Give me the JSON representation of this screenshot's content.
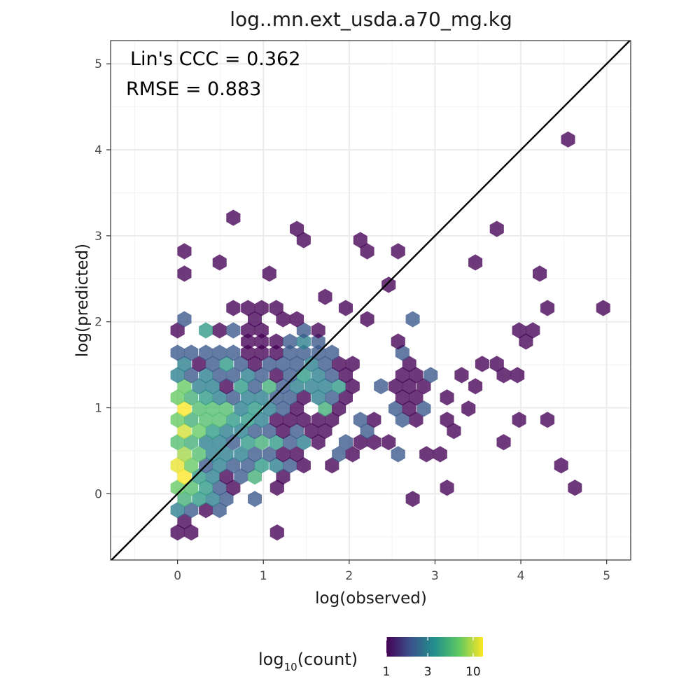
{
  "chart_data": {
    "type": "hexbin",
    "title": "log..mn.ext_usda.a70_mg.kg",
    "xlabel": "log(observed)",
    "ylabel": "log(predicted)",
    "xlim": [
      -0.78,
      5.28
    ],
    "ylim": [
      -0.77,
      5.27
    ],
    "x_ticks": [
      0,
      1,
      2,
      3,
      4,
      5
    ],
    "y_ticks": [
      0,
      1,
      2,
      3,
      4,
      5
    ],
    "x_tick_labels": [
      "0",
      "1",
      "2",
      "3",
      "4",
      "5"
    ],
    "y_tick_labels": [
      "0",
      "1",
      "2",
      "3",
      "4",
      "5"
    ],
    "grid": true,
    "reference_line": "1:1",
    "annotations": [
      "Lin's CCC = 0.362",
      "RMSE = 0.883"
    ],
    "legend": {
      "title_base": "log",
      "title_sub": "10",
      "title_rest": "(count)",
      "placement": "bottom",
      "ticks": [
        1,
        3,
        10
      ],
      "tick_labels": [
        "1",
        "3",
        "10"
      ],
      "colors": [
        "#440154",
        "#3b528b",
        "#21908c",
        "#5dc863",
        "#fde725"
      ]
    },
    "hexbin_width": 0.1635,
    "bins": [
      {
        "x": 0.0,
        "y": -0.45,
        "count": 1
      },
      {
        "x": 0.16,
        "y": -0.45,
        "count": 1
      },
      {
        "x": 1.16,
        "y": -0.45,
        "count": 1
      },
      {
        "x": 0.08,
        "y": -0.32,
        "count": 1
      },
      {
        "x": 0.0,
        "y": -0.19,
        "count": 3
      },
      {
        "x": 0.16,
        "y": -0.19,
        "count": 2
      },
      {
        "x": 0.33,
        "y": -0.19,
        "count": 1
      },
      {
        "x": 0.49,
        "y": -0.19,
        "count": 2
      },
      {
        "x": 0.08,
        "y": -0.06,
        "count": 5
      },
      {
        "x": 0.25,
        "y": -0.06,
        "count": 4
      },
      {
        "x": 0.41,
        "y": -0.06,
        "count": 3
      },
      {
        "x": 0.57,
        "y": -0.06,
        "count": 2
      },
      {
        "x": 0.9,
        "y": -0.06,
        "count": 2
      },
      {
        "x": 2.74,
        "y": -0.06,
        "count": 1
      },
      {
        "x": 0.0,
        "y": 0.07,
        "count": 7
      },
      {
        "x": 0.16,
        "y": 0.07,
        "count": 6
      },
      {
        "x": 0.33,
        "y": 0.07,
        "count": 4
      },
      {
        "x": 0.49,
        "y": 0.07,
        "count": 2
      },
      {
        "x": 0.65,
        "y": 0.07,
        "count": 1
      },
      {
        "x": 1.16,
        "y": 0.07,
        "count": 1
      },
      {
        "x": 3.14,
        "y": 0.07,
        "count": 1
      },
      {
        "x": 4.63,
        "y": 0.07,
        "count": 1
      },
      {
        "x": 0.08,
        "y": 0.2,
        "count": 13
      },
      {
        "x": 0.25,
        "y": 0.2,
        "count": 4
      },
      {
        "x": 0.41,
        "y": 0.2,
        "count": 3
      },
      {
        "x": 0.57,
        "y": 0.2,
        "count": 1
      },
      {
        "x": 0.74,
        "y": 0.2,
        "count": 2
      },
      {
        "x": 0.9,
        "y": 0.2,
        "count": 5
      },
      {
        "x": 1.23,
        "y": 0.2,
        "count": 1
      },
      {
        "x": 0.0,
        "y": 0.33,
        "count": 12
      },
      {
        "x": 0.16,
        "y": 0.33,
        "count": 7
      },
      {
        "x": 0.33,
        "y": 0.33,
        "count": 2
      },
      {
        "x": 0.49,
        "y": 0.33,
        "count": 3
      },
      {
        "x": 0.65,
        "y": 0.33,
        "count": 2
      },
      {
        "x": 0.82,
        "y": 0.33,
        "count": 2
      },
      {
        "x": 0.98,
        "y": 0.33,
        "count": 4
      },
      {
        "x": 1.15,
        "y": 0.33,
        "count": 3
      },
      {
        "x": 1.31,
        "y": 0.33,
        "count": 2
      },
      {
        "x": 1.47,
        "y": 0.33,
        "count": 1
      },
      {
        "x": 1.8,
        "y": 0.33,
        "count": 1
      },
      {
        "x": 4.47,
        "y": 0.33,
        "count": 1
      },
      {
        "x": 0.08,
        "y": 0.46,
        "count": 9
      },
      {
        "x": 0.25,
        "y": 0.46,
        "count": 6
      },
      {
        "x": 0.41,
        "y": 0.46,
        "count": 3
      },
      {
        "x": 0.57,
        "y": 0.46,
        "count": 3
      },
      {
        "x": 0.74,
        "y": 0.46,
        "count": 3
      },
      {
        "x": 0.9,
        "y": 0.46,
        "count": 2
      },
      {
        "x": 1.07,
        "y": 0.46,
        "count": 2
      },
      {
        "x": 1.23,
        "y": 0.46,
        "count": 1
      },
      {
        "x": 1.39,
        "y": 0.46,
        "count": 1
      },
      {
        "x": 1.88,
        "y": 0.46,
        "count": 2
      },
      {
        "x": 2.04,
        "y": 0.46,
        "count": 1
      },
      {
        "x": 2.57,
        "y": 0.46,
        "count": 2
      },
      {
        "x": 2.9,
        "y": 0.46,
        "count": 1
      },
      {
        "x": 3.06,
        "y": 0.46,
        "count": 1
      },
      {
        "x": 0.0,
        "y": 0.6,
        "count": 6
      },
      {
        "x": 0.16,
        "y": 0.6,
        "count": 5
      },
      {
        "x": 0.33,
        "y": 0.6,
        "count": 3
      },
      {
        "x": 0.49,
        "y": 0.6,
        "count": 3
      },
      {
        "x": 0.65,
        "y": 0.6,
        "count": 2
      },
      {
        "x": 0.82,
        "y": 0.6,
        "count": 4
      },
      {
        "x": 0.98,
        "y": 0.6,
        "count": 5
      },
      {
        "x": 1.15,
        "y": 0.6,
        "count": 4
      },
      {
        "x": 1.31,
        "y": 0.6,
        "count": 2
      },
      {
        "x": 1.47,
        "y": 0.6,
        "count": 3
      },
      {
        "x": 1.64,
        "y": 0.6,
        "count": 1
      },
      {
        "x": 1.96,
        "y": 0.6,
        "count": 2
      },
      {
        "x": 2.13,
        "y": 0.6,
        "count": 1
      },
      {
        "x": 2.29,
        "y": 0.6,
        "count": 1
      },
      {
        "x": 2.46,
        "y": 0.6,
        "count": 1
      },
      {
        "x": 3.8,
        "y": 0.6,
        "count": 1
      },
      {
        "x": 0.08,
        "y": 0.73,
        "count": 11
      },
      {
        "x": 0.25,
        "y": 0.73,
        "count": 7
      },
      {
        "x": 0.41,
        "y": 0.73,
        "count": 4
      },
      {
        "x": 0.57,
        "y": 0.73,
        "count": 3
      },
      {
        "x": 0.74,
        "y": 0.73,
        "count": 3
      },
      {
        "x": 0.9,
        "y": 0.73,
        "count": 2
      },
      {
        "x": 1.07,
        "y": 0.73,
        "count": 2
      },
      {
        "x": 1.23,
        "y": 0.73,
        "count": 1
      },
      {
        "x": 1.39,
        "y": 0.73,
        "count": 2
      },
      {
        "x": 1.56,
        "y": 0.73,
        "count": 1
      },
      {
        "x": 1.72,
        "y": 0.73,
        "count": 1
      },
      {
        "x": 2.21,
        "y": 0.73,
        "count": 2
      },
      {
        "x": 3.22,
        "y": 0.73,
        "count": 1
      },
      {
        "x": 0.0,
        "y": 0.86,
        "count": 7
      },
      {
        "x": 0.16,
        "y": 0.86,
        "count": 5
      },
      {
        "x": 0.33,
        "y": 0.86,
        "count": 6
      },
      {
        "x": 0.49,
        "y": 0.86,
        "count": 6
      },
      {
        "x": 0.65,
        "y": 0.86,
        "count": 4
      },
      {
        "x": 0.82,
        "y": 0.86,
        "count": 4
      },
      {
        "x": 0.98,
        "y": 0.86,
        "count": 3
      },
      {
        "x": 1.15,
        "y": 0.86,
        "count": 1
      },
      {
        "x": 1.31,
        "y": 0.86,
        "count": 1
      },
      {
        "x": 1.47,
        "y": 0.86,
        "count": 1
      },
      {
        "x": 1.64,
        "y": 0.86,
        "count": 1
      },
      {
        "x": 1.8,
        "y": 0.86,
        "count": 1
      },
      {
        "x": 2.13,
        "y": 0.86,
        "count": 2
      },
      {
        "x": 2.29,
        "y": 0.86,
        "count": 1
      },
      {
        "x": 2.62,
        "y": 0.86,
        "count": 2
      },
      {
        "x": 2.78,
        "y": 0.86,
        "count": 1
      },
      {
        "x": 3.14,
        "y": 0.86,
        "count": 1
      },
      {
        "x": 3.98,
        "y": 0.86,
        "count": 1
      },
      {
        "x": 4.31,
        "y": 0.86,
        "count": 1
      },
      {
        "x": 0.08,
        "y": 0.99,
        "count": 13
      },
      {
        "x": 0.25,
        "y": 0.99,
        "count": 6
      },
      {
        "x": 0.41,
        "y": 0.99,
        "count": 6
      },
      {
        "x": 0.57,
        "y": 0.99,
        "count": 6
      },
      {
        "x": 0.74,
        "y": 0.99,
        "count": 3
      },
      {
        "x": 0.9,
        "y": 0.99,
        "count": 4
      },
      {
        "x": 1.07,
        "y": 0.99,
        "count": 3
      },
      {
        "x": 1.23,
        "y": 0.99,
        "count": 2
      },
      {
        "x": 1.39,
        "y": 0.99,
        "count": 1
      },
      {
        "x": 1.72,
        "y": 0.99,
        "count": 5
      },
      {
        "x": 1.88,
        "y": 0.99,
        "count": 1
      },
      {
        "x": 2.54,
        "y": 0.99,
        "count": 2
      },
      {
        "x": 2.7,
        "y": 0.99,
        "count": 1
      },
      {
        "x": 2.87,
        "y": 0.99,
        "count": 2
      },
      {
        "x": 3.39,
        "y": 0.99,
        "count": 1
      },
      {
        "x": 0.0,
        "y": 1.12,
        "count": 7
      },
      {
        "x": 0.16,
        "y": 1.12,
        "count": 5
      },
      {
        "x": 0.33,
        "y": 1.12,
        "count": 4
      },
      {
        "x": 0.49,
        "y": 1.12,
        "count": 3
      },
      {
        "x": 0.65,
        "y": 1.12,
        "count": 2
      },
      {
        "x": 0.82,
        "y": 1.12,
        "count": 3
      },
      {
        "x": 0.98,
        "y": 1.12,
        "count": 3
      },
      {
        "x": 1.15,
        "y": 1.12,
        "count": 2
      },
      {
        "x": 1.31,
        "y": 1.12,
        "count": 2
      },
      {
        "x": 1.47,
        "y": 1.12,
        "count": 1
      },
      {
        "x": 1.64,
        "y": 1.12,
        "count": 3
      },
      {
        "x": 1.8,
        "y": 1.12,
        "count": 2
      },
      {
        "x": 1.96,
        "y": 1.12,
        "count": 1
      },
      {
        "x": 2.62,
        "y": 1.12,
        "count": 1
      },
      {
        "x": 2.78,
        "y": 1.12,
        "count": 1
      },
      {
        "x": 3.14,
        "y": 1.12,
        "count": 1
      },
      {
        "x": 0.08,
        "y": 1.25,
        "count": 7
      },
      {
        "x": 0.25,
        "y": 1.25,
        "count": 3
      },
      {
        "x": 0.41,
        "y": 1.25,
        "count": 3
      },
      {
        "x": 0.57,
        "y": 1.25,
        "count": 1
      },
      {
        "x": 0.74,
        "y": 1.25,
        "count": 4
      },
      {
        "x": 0.9,
        "y": 1.25,
        "count": 2
      },
      {
        "x": 1.07,
        "y": 1.25,
        "count": 5
      },
      {
        "x": 1.23,
        "y": 1.25,
        "count": 2
      },
      {
        "x": 1.39,
        "y": 1.25,
        "count": 3
      },
      {
        "x": 1.56,
        "y": 1.25,
        "count": 3
      },
      {
        "x": 1.72,
        "y": 1.25,
        "count": 3
      },
      {
        "x": 1.88,
        "y": 1.25,
        "count": 4
      },
      {
        "x": 2.04,
        "y": 1.25,
        "count": 1
      },
      {
        "x": 2.37,
        "y": 1.25,
        "count": 2
      },
      {
        "x": 2.54,
        "y": 1.25,
        "count": 1
      },
      {
        "x": 2.7,
        "y": 1.25,
        "count": 1
      },
      {
        "x": 2.87,
        "y": 1.25,
        "count": 1
      },
      {
        "x": 3.47,
        "y": 1.25,
        "count": 1
      },
      {
        "x": 0.0,
        "y": 1.38,
        "count": 3
      },
      {
        "x": 0.16,
        "y": 1.38,
        "count": 2
      },
      {
        "x": 0.33,
        "y": 1.38,
        "count": 3
      },
      {
        "x": 0.49,
        "y": 1.38,
        "count": 2
      },
      {
        "x": 0.65,
        "y": 1.38,
        "count": 2
      },
      {
        "x": 0.82,
        "y": 1.38,
        "count": 3
      },
      {
        "x": 0.98,
        "y": 1.38,
        "count": 2
      },
      {
        "x": 1.15,
        "y": 1.38,
        "count": 1
      },
      {
        "x": 1.31,
        "y": 1.38,
        "count": 2
      },
      {
        "x": 1.47,
        "y": 1.38,
        "count": 4
      },
      {
        "x": 1.64,
        "y": 1.38,
        "count": 3
      },
      {
        "x": 1.8,
        "y": 1.38,
        "count": 2
      },
      {
        "x": 1.96,
        "y": 1.38,
        "count": 1
      },
      {
        "x": 2.62,
        "y": 1.38,
        "count": 1
      },
      {
        "x": 2.78,
        "y": 1.38,
        "count": 1
      },
      {
        "x": 2.95,
        "y": 1.38,
        "count": 2
      },
      {
        "x": 3.31,
        "y": 1.38,
        "count": 1
      },
      {
        "x": 3.8,
        "y": 1.38,
        "count": 1
      },
      {
        "x": 3.96,
        "y": 1.38,
        "count": 1
      },
      {
        "x": 0.08,
        "y": 1.51,
        "count": 3
      },
      {
        "x": 0.25,
        "y": 1.51,
        "count": 1
      },
      {
        "x": 0.41,
        "y": 1.51,
        "count": 2
      },
      {
        "x": 0.57,
        "y": 1.51,
        "count": 4
      },
      {
        "x": 0.74,
        "y": 1.51,
        "count": 2
      },
      {
        "x": 0.9,
        "y": 1.51,
        "count": 1
      },
      {
        "x": 1.07,
        "y": 1.51,
        "count": 2
      },
      {
        "x": 1.23,
        "y": 1.51,
        "count": 2
      },
      {
        "x": 1.39,
        "y": 1.51,
        "count": 2
      },
      {
        "x": 1.56,
        "y": 1.51,
        "count": 3
      },
      {
        "x": 1.72,
        "y": 1.51,
        "count": 2
      },
      {
        "x": 1.88,
        "y": 1.51,
        "count": 1
      },
      {
        "x": 2.04,
        "y": 1.51,
        "count": 1
      },
      {
        "x": 2.7,
        "y": 1.51,
        "count": 1
      },
      {
        "x": 3.55,
        "y": 1.51,
        "count": 1
      },
      {
        "x": 3.72,
        "y": 1.51,
        "count": 1
      },
      {
        "x": 0.0,
        "y": 1.64,
        "count": 2
      },
      {
        "x": 0.16,
        "y": 1.64,
        "count": 2
      },
      {
        "x": 0.33,
        "y": 1.64,
        "count": 2
      },
      {
        "x": 0.49,
        "y": 1.64,
        "count": 2
      },
      {
        "x": 0.65,
        "y": 1.64,
        "count": 2
      },
      {
        "x": 0.82,
        "y": 1.64,
        "count": 1
      },
      {
        "x": 0.98,
        "y": 1.64,
        "count": 1
      },
      {
        "x": 1.15,
        "y": 1.64,
        "count": 1
      },
      {
        "x": 1.31,
        "y": 1.64,
        "count": 2
      },
      {
        "x": 1.47,
        "y": 1.64,
        "count": 2
      },
      {
        "x": 1.64,
        "y": 1.64,
        "count": 2
      },
      {
        "x": 1.8,
        "y": 1.64,
        "count": 2
      },
      {
        "x": 2.62,
        "y": 1.64,
        "count": 2
      },
      {
        "x": 0.82,
        "y": 1.77,
        "count": 1
      },
      {
        "x": 0.98,
        "y": 1.77,
        "count": 1
      },
      {
        "x": 1.15,
        "y": 1.77,
        "count": 1
      },
      {
        "x": 1.31,
        "y": 1.77,
        "count": 2
      },
      {
        "x": 1.47,
        "y": 1.77,
        "count": 3
      },
      {
        "x": 1.64,
        "y": 1.77,
        "count": 2
      },
      {
        "x": 2.57,
        "y": 1.77,
        "count": 1
      },
      {
        "x": 4.06,
        "y": 1.77,
        "count": 1
      },
      {
        "x": 0.0,
        "y": 1.9,
        "count": 1
      },
      {
        "x": 0.33,
        "y": 1.9,
        "count": 4
      },
      {
        "x": 0.49,
        "y": 1.9,
        "count": 1
      },
      {
        "x": 0.65,
        "y": 1.9,
        "count": 2
      },
      {
        "x": 0.82,
        "y": 1.9,
        "count": 1
      },
      {
        "x": 0.98,
        "y": 1.9,
        "count": 1
      },
      {
        "x": 1.47,
        "y": 1.9,
        "count": 2
      },
      {
        "x": 1.64,
        "y": 1.9,
        "count": 1
      },
      {
        "x": 3.98,
        "y": 1.9,
        "count": 1
      },
      {
        "x": 4.14,
        "y": 1.9,
        "count": 1
      },
      {
        "x": 0.08,
        "y": 2.03,
        "count": 2
      },
      {
        "x": 0.9,
        "y": 2.03,
        "count": 1
      },
      {
        "x": 1.23,
        "y": 2.03,
        "count": 1
      },
      {
        "x": 1.39,
        "y": 2.03,
        "count": 1
      },
      {
        "x": 2.21,
        "y": 2.03,
        "count": 1
      },
      {
        "x": 2.74,
        "y": 2.03,
        "count": 2
      },
      {
        "x": 0.65,
        "y": 2.16,
        "count": 1
      },
      {
        "x": 0.82,
        "y": 2.16,
        "count": 1
      },
      {
        "x": 0.98,
        "y": 2.16,
        "count": 1
      },
      {
        "x": 1.15,
        "y": 2.16,
        "count": 1
      },
      {
        "x": 1.96,
        "y": 2.16,
        "count": 1
      },
      {
        "x": 4.31,
        "y": 2.16,
        "count": 1
      },
      {
        "x": 4.96,
        "y": 2.16,
        "count": 1
      },
      {
        "x": 1.72,
        "y": 2.29,
        "count": 1
      },
      {
        "x": 2.46,
        "y": 2.43,
        "count": 1
      },
      {
        "x": 0.08,
        "y": 2.56,
        "count": 1
      },
      {
        "x": 1.07,
        "y": 2.56,
        "count": 1
      },
      {
        "x": 4.22,
        "y": 2.56,
        "count": 1
      },
      {
        "x": 0.49,
        "y": 2.69,
        "count": 1
      },
      {
        "x": 3.47,
        "y": 2.69,
        "count": 1
      },
      {
        "x": 0.08,
        "y": 2.82,
        "count": 1
      },
      {
        "x": 2.21,
        "y": 2.82,
        "count": 1
      },
      {
        "x": 2.57,
        "y": 2.82,
        "count": 1
      },
      {
        "x": 1.47,
        "y": 2.95,
        "count": 1
      },
      {
        "x": 2.13,
        "y": 2.95,
        "count": 1
      },
      {
        "x": 1.39,
        "y": 3.08,
        "count": 1
      },
      {
        "x": 3.72,
        "y": 3.08,
        "count": 1
      },
      {
        "x": 0.65,
        "y": 3.21,
        "count": 1
      },
      {
        "x": 4.55,
        "y": 4.12,
        "count": 1
      }
    ]
  }
}
